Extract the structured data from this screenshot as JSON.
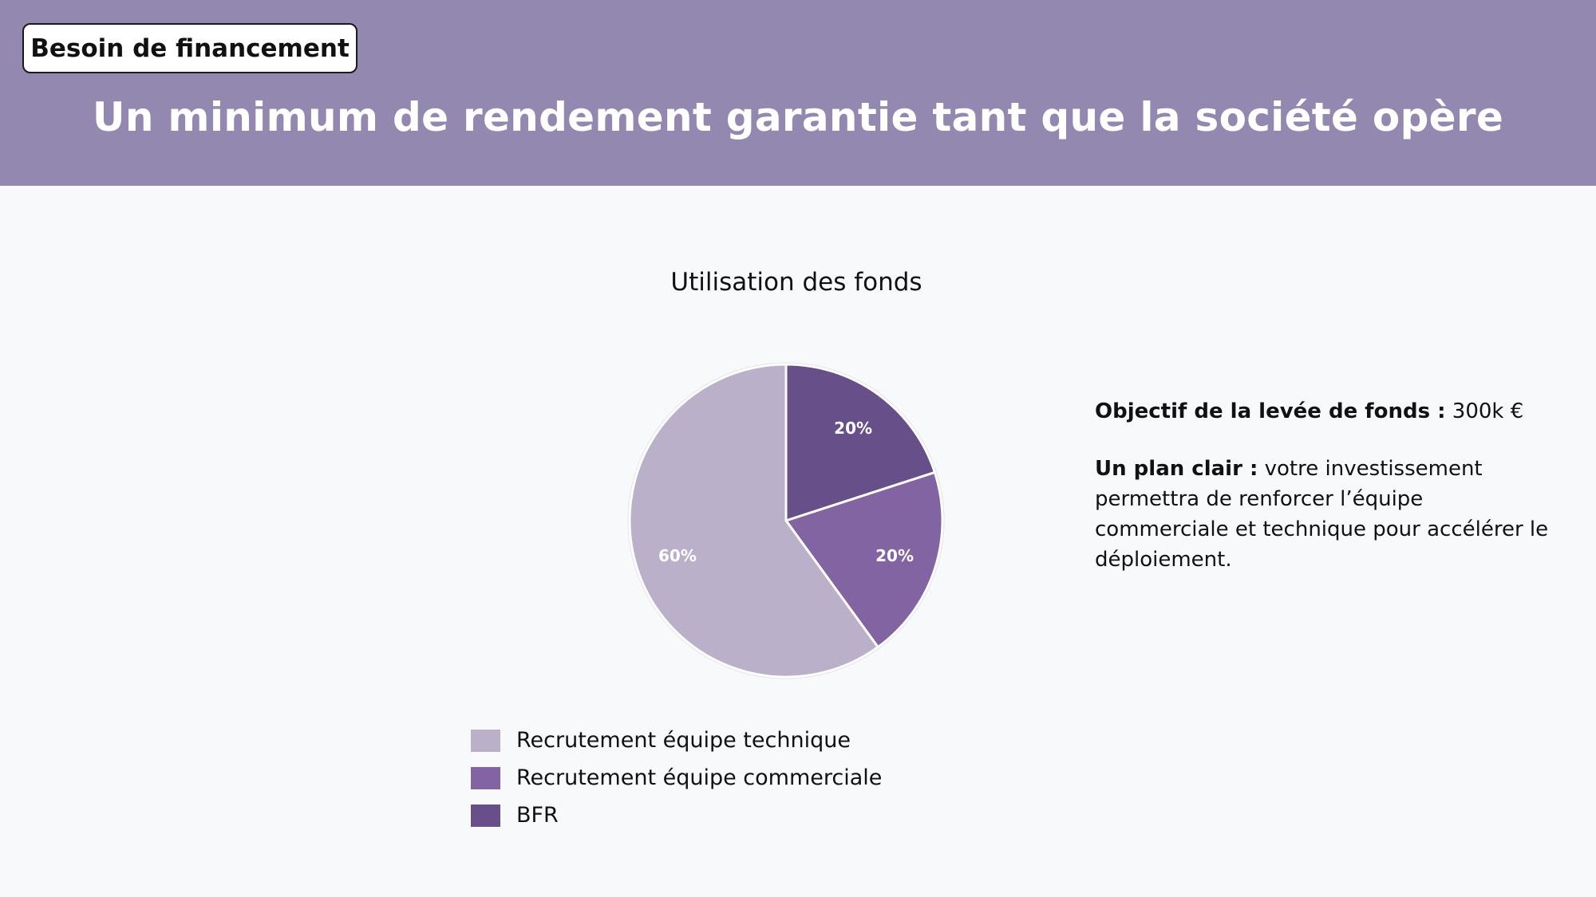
{
  "header": {
    "section_tag": "Besoin de financement",
    "title": "Un minimum de rendement garantie tant que la société opère"
  },
  "colors": {
    "header_bg": "#9388b0",
    "slice_light": "#bab0ca",
    "slice_mid": "#8264a2",
    "slice_dark": "#674f89"
  },
  "chart_data": {
    "type": "pie",
    "title": "Utilisation des fonds",
    "slices": [
      {
        "label": "BFR",
        "value": 20,
        "display": "20%",
        "color": "#674f89"
      },
      {
        "label": "Recrutement équipe commerciale",
        "value": 20,
        "display": "20%",
        "color": "#8264a2"
      },
      {
        "label": "Recrutement équipe technique",
        "value": 60,
        "display": "60%",
        "color": "#bab0ca"
      }
    ],
    "legend": [
      {
        "label": "Recrutement équipe technique",
        "color": "#bab0ca"
      },
      {
        "label": "Recrutement équipe commerciale",
        "color": "#8264a2"
      },
      {
        "label": "BFR",
        "color": "#674f89"
      }
    ],
    "legend_position": "bottom"
  },
  "info": {
    "goal_label": "Objectif de la levée de fonds :",
    "goal_value": " 300k €",
    "plan_label": "Un plan clair :",
    "plan_text": " votre investissement permettra de renforcer l’équipe commerciale et technique pour accélérer le déploiement."
  }
}
